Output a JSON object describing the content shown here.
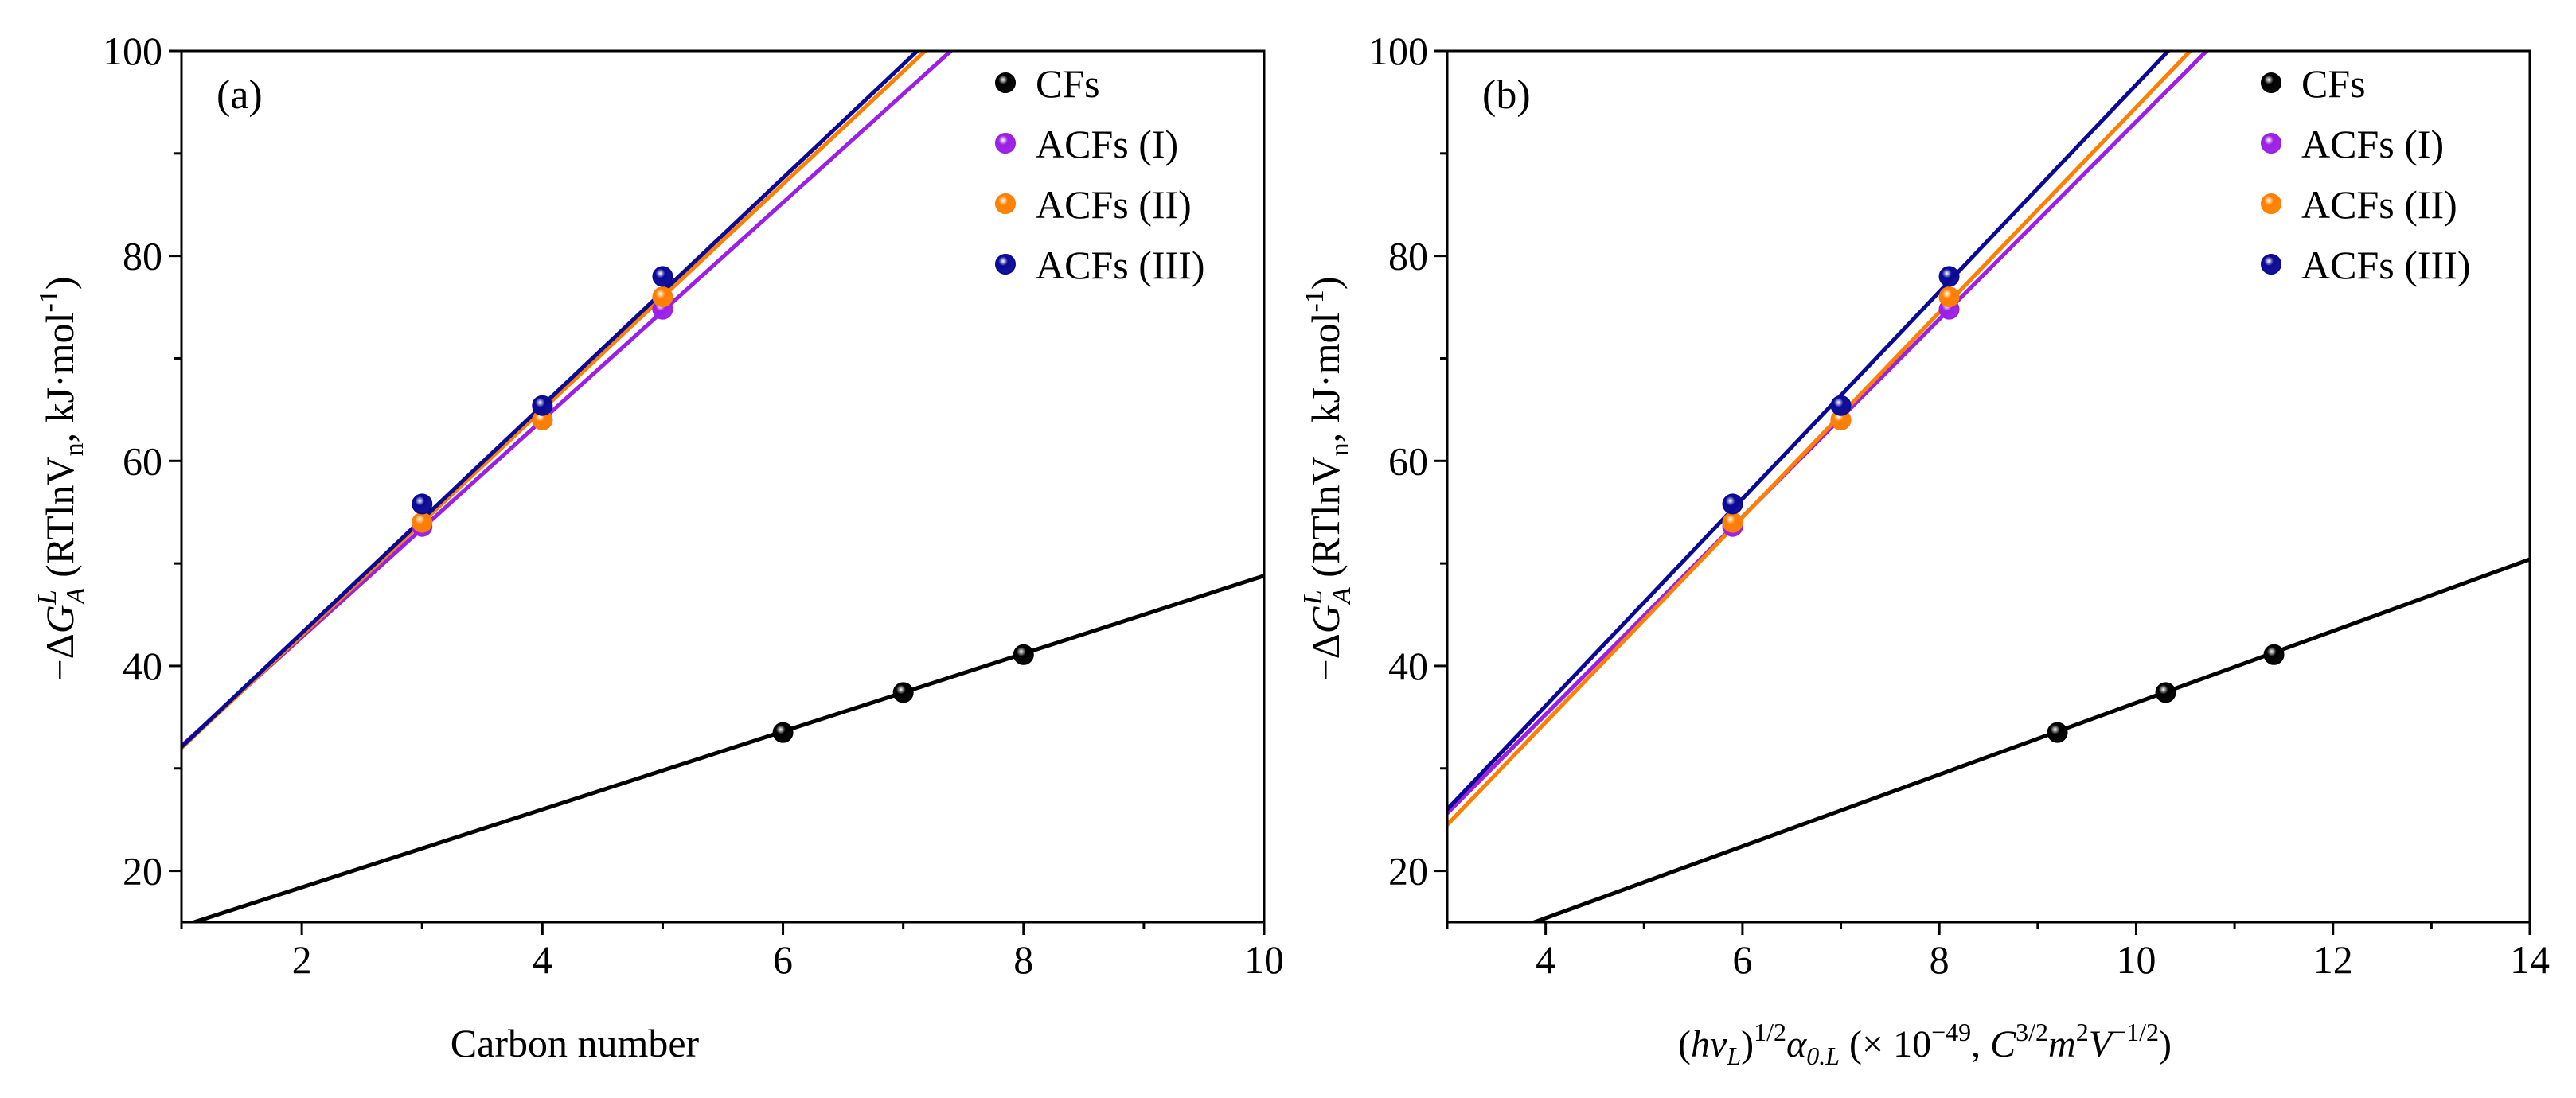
{
  "chart_data": [
    {
      "type": "scatter",
      "panel_label": "(a)",
      "xlabel": "Carbon number",
      "ylabel": {
        "prefix": "−Δ",
        "symbol": "G",
        "superscript": "L",
        "subscript": "A",
        "paren_text": " (RTlnV",
        "paren_sub": "n",
        "paren_rest": ", kJ·mol",
        "paren_sup": "-1",
        "paren_close": ")"
      },
      "xlim": [
        1,
        10
      ],
      "ylim": [
        15,
        100
      ],
      "xticks": [
        2,
        4,
        6,
        8,
        10
      ],
      "yticks": [
        20,
        40,
        60,
        80,
        100
      ],
      "grid": false,
      "legend_position": "top-right",
      "series": [
        {
          "name": "CFs",
          "color": "#000000",
          "x": [
            6,
            7,
            8
          ],
          "y": [
            33.5,
            37.4,
            41.1
          ],
          "fit": {
            "slope": 3.8,
            "intercept": 10.8
          }
        },
        {
          "name": "ACFs (I)",
          "color": "#9b1fe6",
          "x": [
            3,
            4,
            5
          ],
          "y": [
            53.6,
            64.0,
            74.8
          ],
          "fit": {
            "slope": 10.6,
            "intercept": 21.6
          }
        },
        {
          "name": "ACFs (II)",
          "color": "#ff8000",
          "x": [
            3,
            4,
            5
          ],
          "y": [
            54.0,
            64.0,
            76.0
          ],
          "fit": {
            "slope": 11.0,
            "intercept": 21.0
          }
        },
        {
          "name": "ACFs (III)",
          "color": "#0a0a96",
          "x": [
            3,
            4,
            5
          ],
          "y": [
            55.8,
            65.4,
            78.0
          ],
          "fit": {
            "slope": 11.1,
            "intercept": 21.0
          }
        }
      ]
    },
    {
      "type": "scatter",
      "panel_label": "(b)",
      "xlabel": {
        "open": "(",
        "h": "h",
        "nu": "ν",
        "nu_sub": "L",
        "close": ")",
        "exp": "1/2",
        "alpha": "α",
        "alpha_sub": "0.L",
        "rest_open": " (× 10",
        "rest_exp": "−49",
        "comma": ", ",
        "C": "C",
        "C_exp": "3/2",
        "m": "m",
        "m_exp": "2",
        "V": "V",
        "V_exp": "−1/2",
        "rest_close": ")"
      },
      "ylabel": {
        "prefix": "−Δ",
        "symbol": "G",
        "superscript": "L",
        "subscript": "A",
        "paren_text": " (RTlnV",
        "paren_sub": "n",
        "paren_rest": ", kJ·mol",
        "paren_sup": "-1",
        "paren_close": ")"
      },
      "xlim": [
        3,
        14
      ],
      "ylim": [
        15,
        100
      ],
      "xticks": [
        4,
        6,
        8,
        10,
        12,
        14
      ],
      "yticks": [
        20,
        40,
        60,
        80,
        100
      ],
      "grid": false,
      "legend_position": "top-right",
      "series": [
        {
          "name": "CFs",
          "color": "#000000",
          "x": [
            9.2,
            10.3,
            11.4
          ],
          "y": [
            33.5,
            37.4,
            41.1
          ],
          "fit": {
            "slope": 3.5,
            "intercept": 1.4
          }
        },
        {
          "name": "ACFs (I)",
          "color": "#9b1fe6",
          "x": [
            5.9,
            7.0,
            8.1
          ],
          "y": [
            53.6,
            64.0,
            74.8
          ],
          "fit": {
            "slope": 9.64,
            "intercept": -3.3
          }
        },
        {
          "name": "ACFs (II)",
          "color": "#ff8000",
          "x": [
            5.9,
            7.0,
            8.1
          ],
          "y": [
            54.0,
            64.0,
            76.0
          ],
          "fit": {
            "slope": 10.0,
            "intercept": -5.5
          }
        },
        {
          "name": "ACFs (III)",
          "color": "#0a0a96",
          "x": [
            5.9,
            7.0,
            8.1
          ],
          "y": [
            55.8,
            65.4,
            78.0
          ],
          "fit": {
            "slope": 10.1,
            "intercept": -4.3
          }
        }
      ]
    }
  ]
}
